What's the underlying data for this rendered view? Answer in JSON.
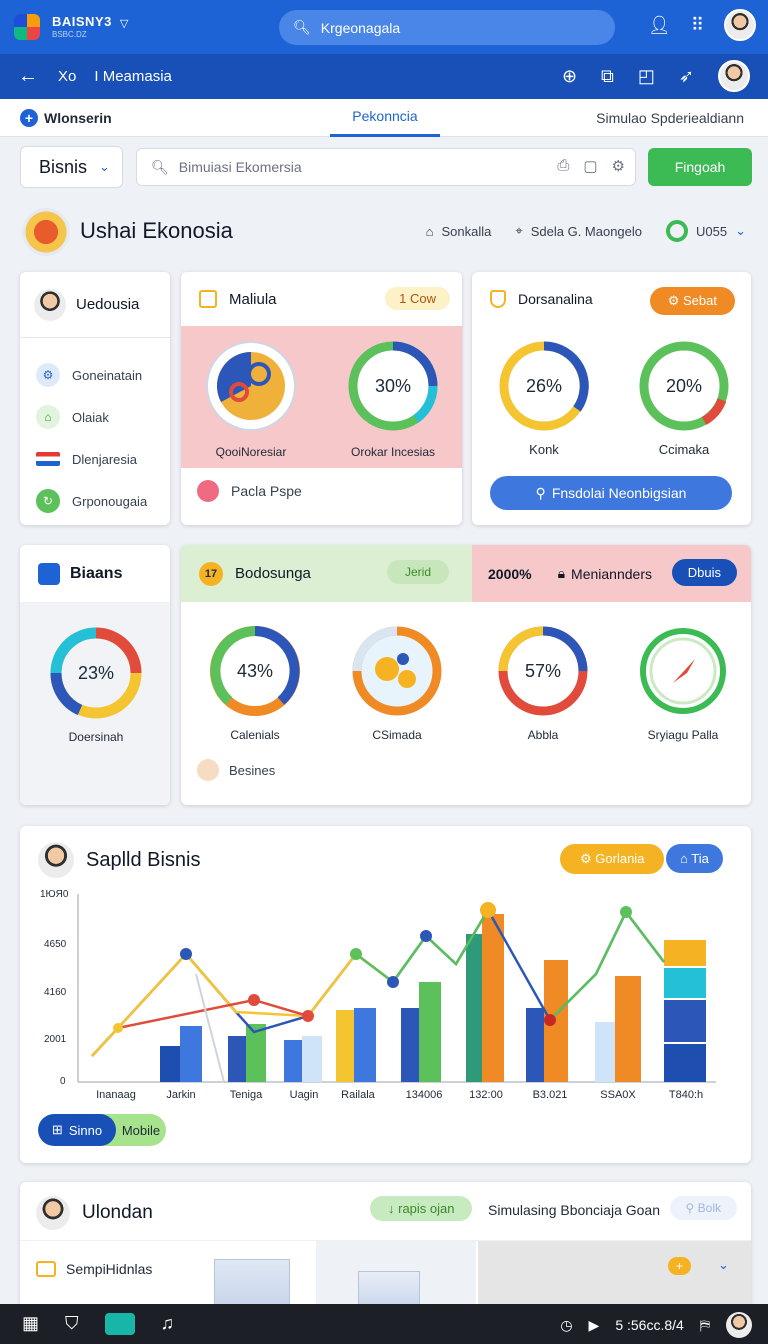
{
  "topbar": {
    "brand_title": "BAISNY3",
    "brand_sub": "BSBC.DZ",
    "brand_caret": "▽",
    "search_text": "Krgeonagala"
  },
  "navbar": {
    "back_icon": "←",
    "title_1": "Xo",
    "title_2": "I Meamasia"
  },
  "tabs": {
    "left": "Wlonserin",
    "middle": "Pekonncia",
    "right": "Simulao Spderiealdiann"
  },
  "toolbar": {
    "select": "Bisnis",
    "search_placeholder": "Bimuiasi Ekomersia",
    "button": "Fingoah"
  },
  "header": {
    "title": "Ushai Ekonosia",
    "item_1": "Sonkalla",
    "item_2": "Sdela G. Maongelo",
    "item_3": "U055"
  },
  "user_card": {
    "name": "Uedousia",
    "items": [
      {
        "label": "Goneinatain"
      },
      {
        "label": "Olaiak"
      },
      {
        "label": "Dlenjaresia"
      },
      {
        "label": "Grponougaia"
      }
    ]
  },
  "maliula_card": {
    "title": "Maliula",
    "badge": "1 Cow",
    "left_label": "QooiNoresiar",
    "right_value": "30%",
    "right_label": "Orokar Incesias",
    "footer": "Pacla Pspe"
  },
  "dors_card": {
    "title": "Dorsanalina",
    "badge": "Sebat",
    "donut_1_value": "26%",
    "donut_1_label": "Konk",
    "donut_2_value": "20%",
    "donut_2_label": "Ccimaka",
    "button": "Fnsdolai Neonbigsian"
  },
  "biaans_card": {
    "title": "Biaans",
    "donut_value": "23%",
    "donut_label": "Doersinah"
  },
  "bodo_card": {
    "title": "Bodosunga",
    "icon_text": "17",
    "pill": "Jerid",
    "pct": "2000%",
    "meta": "Meniannders",
    "button": "Dbuis",
    "donuts": [
      {
        "value": "43%",
        "label": "Calenials"
      },
      {
        "value": "",
        "label": "CSimada"
      },
      {
        "value": "57%",
        "label": "Abbla"
      },
      {
        "value": "",
        "label": "Sryiagu Palla"
      }
    ],
    "footer": "Besines"
  },
  "chart_card": {
    "title": "Saplld Bisnis",
    "btn_1": "Gorlania",
    "btn_2": "Tia",
    "toggle_on": "Sinno",
    "toggle_off": "Mobile"
  },
  "chart_data": {
    "type": "bar",
    "y_ticks": [
      "0",
      "2001",
      "4160",
      "4650",
      "1ЮЯ0"
    ],
    "categories": [
      "Inanaag",
      "Jarkin",
      "Teniga",
      "Uagin",
      "Railala",
      "134006",
      "132:00",
      "B3.021",
      "SSA0X",
      "T840:h"
    ],
    "grid": false
  },
  "last_card": {
    "title": "Ulondan",
    "pill": "↓ rapis ojan",
    "mid": "Simulasing Bbonciaja Goan",
    "faint": "Bolk",
    "row_label": "SempiHidnlas",
    "add": "+"
  },
  "taskbar": {
    "time": "5 :56cc.8/4"
  },
  "colors": {
    "primary": "#1e63d6",
    "primary_dark": "#1850b8",
    "green": "#3cba54",
    "orange": "#f08a24",
    "yellow": "#f5b324",
    "pink": "#f6c8c9"
  }
}
